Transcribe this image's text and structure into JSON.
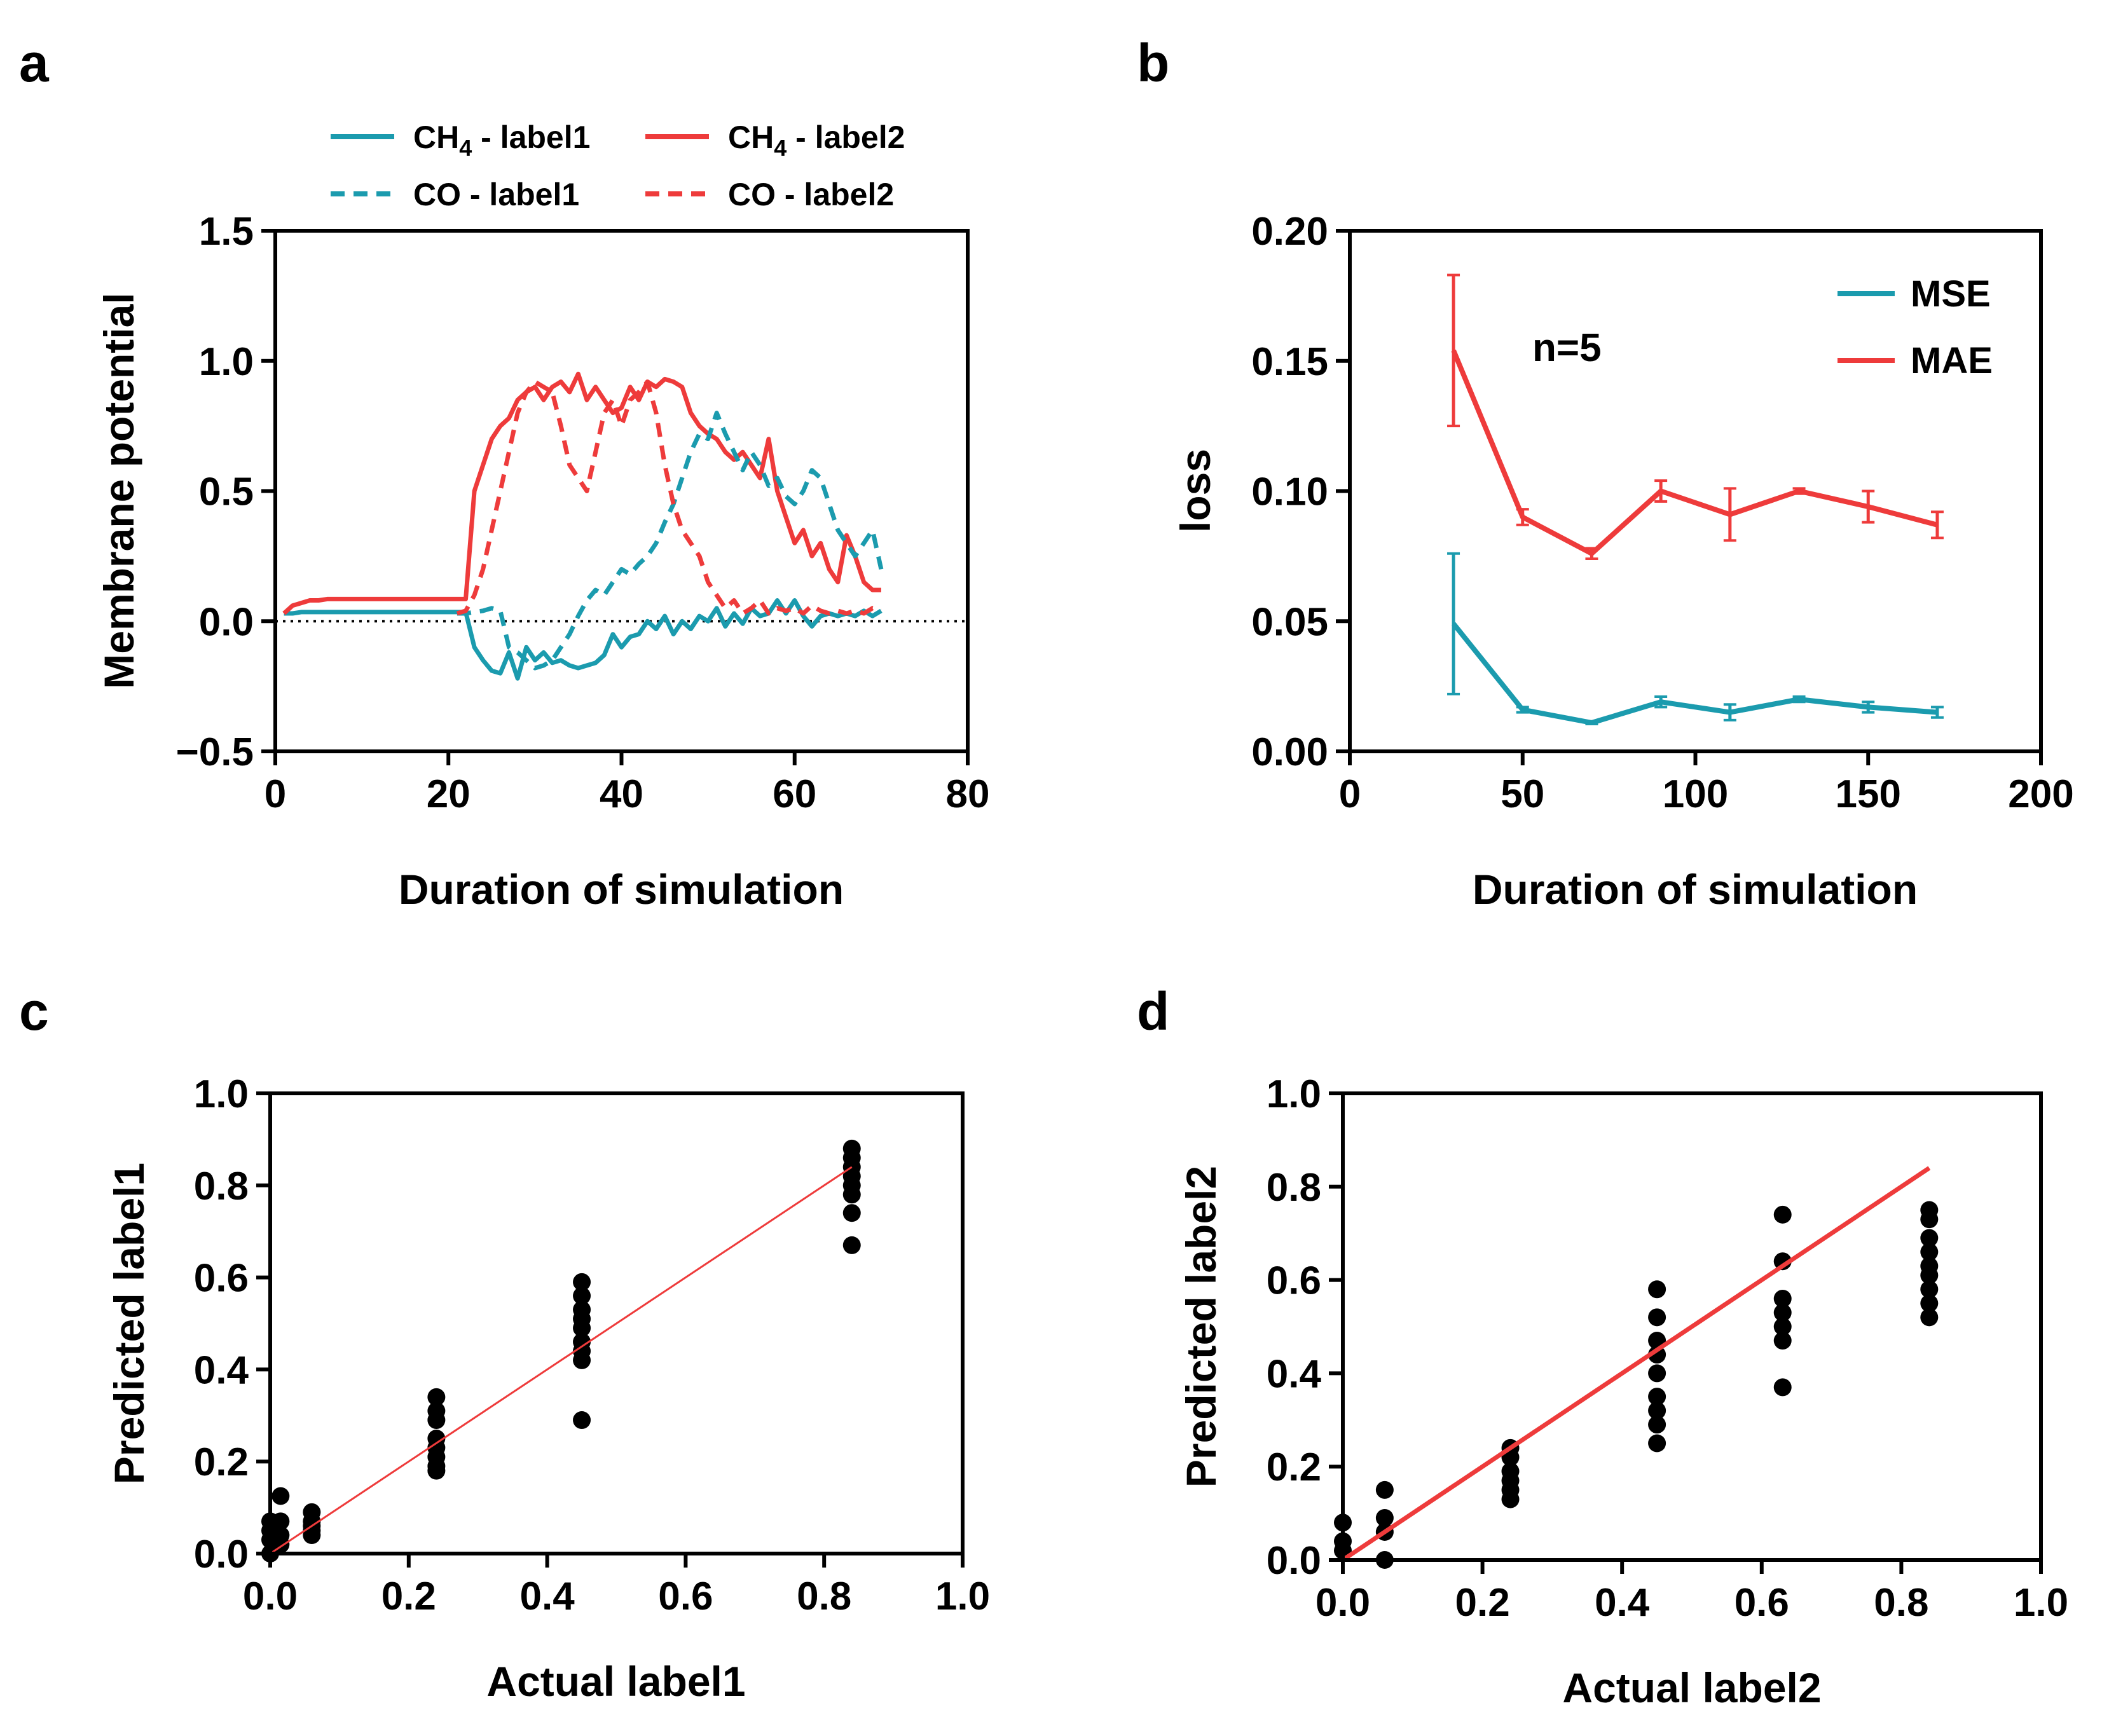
{
  "colors": {
    "teal": "#1B9BAE",
    "red": "#EE3B3B",
    "black": "#000000"
  },
  "chart_data": [
    {
      "panel": "a",
      "type": "line",
      "xlabel": "Duration of simulation",
      "ylabel": "Membrane potential",
      "xlim": [
        0,
        80
      ],
      "ylim": [
        -0.5,
        1.5
      ],
      "xticks": [
        "0",
        "20",
        "40",
        "60",
        "80"
      ],
      "yticks": [
        "−0.5",
        "0.0",
        "0.5",
        "1.0",
        "1.5"
      ],
      "reference_line": 0,
      "legend": [
        {
          "name": "CH",
          "sub": "4",
          "suffix": " - label1",
          "color": "#1B9BAE",
          "dash": false
        },
        {
          "name": "CH",
          "sub": "4",
          "suffix": " - label2",
          "color": "#EE3B3B",
          "dash": false
        },
        {
          "name": "CO - label1",
          "sub": "",
          "suffix": "",
          "color": "#1B9BAE",
          "dash": true
        },
        {
          "name": "CO - label2",
          "sub": "",
          "suffix": "",
          "color": "#EE3B3B",
          "dash": true
        }
      ],
      "series": [
        {
          "name": "CH4 - label1",
          "color": "#1B9BAE",
          "dash": false,
          "x": [
            1,
            2,
            3,
            4,
            5,
            10,
            15,
            20,
            22,
            23,
            24,
            25,
            26,
            27,
            28,
            29,
            30,
            31,
            32,
            33,
            34,
            35,
            36,
            37,
            38,
            39,
            40,
            41,
            42,
            43,
            44,
            45,
            46,
            47,
            48,
            49,
            50,
            51,
            52,
            53,
            54,
            55,
            56,
            57,
            58,
            59,
            60,
            61,
            62,
            63,
            64,
            65,
            66,
            67,
            68,
            69,
            70
          ],
          "y": [
            0.03,
            0.03,
            0.035,
            0.035,
            0.035,
            0.035,
            0.035,
            0.035,
            0.035,
            -0.1,
            -0.15,
            -0.19,
            -0.2,
            -0.12,
            -0.22,
            -0.1,
            -0.15,
            -0.12,
            -0.16,
            -0.15,
            -0.17,
            -0.18,
            -0.17,
            -0.16,
            -0.13,
            -0.05,
            -0.1,
            -0.06,
            -0.05,
            0,
            -0.03,
            0.02,
            -0.05,
            0,
            -0.03,
            0.02,
            0,
            0.05,
            -0.02,
            0.03,
            -0.01,
            0.05,
            0.02,
            0.03,
            0.08,
            0.03,
            0.08,
            0.02,
            -0.02,
            0.02,
            0.03,
            0.02,
            0.03,
            0.02,
            0.04,
            0.02,
            0.04
          ]
        },
        {
          "name": "CH4 - label2",
          "color": "#EE3B3B",
          "dash": false,
          "x": [
            1,
            2,
            3,
            4,
            5,
            6,
            10,
            15,
            20,
            22,
            23,
            24,
            25,
            26,
            27,
            28,
            29,
            30,
            31,
            32,
            33,
            34,
            35,
            36,
            37,
            38,
            39,
            40,
            41,
            42,
            43,
            44,
            45,
            46,
            47,
            48,
            49,
            50,
            51,
            52,
            53,
            54,
            55,
            56,
            57,
            58,
            59,
            60,
            61,
            62,
            63,
            64,
            65,
            66,
            67,
            68,
            69,
            70
          ],
          "y": [
            0.03,
            0.06,
            0.07,
            0.08,
            0.08,
            0.085,
            0.085,
            0.085,
            0.085,
            0.085,
            0.5,
            0.6,
            0.7,
            0.75,
            0.78,
            0.85,
            0.88,
            0.9,
            0.85,
            0.9,
            0.92,
            0.88,
            0.95,
            0.85,
            0.9,
            0.85,
            0.8,
            0.82,
            0.9,
            0.85,
            0.92,
            0.9,
            0.93,
            0.92,
            0.9,
            0.8,
            0.75,
            0.72,
            0.7,
            0.65,
            0.62,
            0.65,
            0.6,
            0.55,
            0.7,
            0.5,
            0.4,
            0.3,
            0.35,
            0.25,
            0.3,
            0.2,
            0.15,
            0.33,
            0.25,
            0.15,
            0.12,
            0.12
          ]
        },
        {
          "name": "CO - label1",
          "color": "#1B9BAE",
          "dash": true,
          "x": [
            21,
            22,
            23,
            24,
            25,
            26,
            27,
            28,
            29,
            30,
            31,
            32,
            33,
            34,
            35,
            36,
            37,
            38,
            39,
            40,
            41,
            42,
            43,
            44,
            45,
            46,
            47,
            48,
            49,
            50,
            51,
            52,
            53,
            54,
            55,
            56,
            57,
            58,
            59,
            60,
            61,
            62,
            63,
            64,
            65,
            66,
            67,
            68,
            69,
            70
          ],
          "y": [
            0.03,
            0.03,
            0.035,
            0.04,
            0.05,
            0.04,
            -0.1,
            -0.12,
            -0.15,
            -0.18,
            -0.17,
            -0.15,
            -0.1,
            -0.05,
            0.02,
            0.08,
            0.12,
            0.1,
            0.15,
            0.2,
            0.18,
            0.22,
            0.25,
            0.3,
            0.38,
            0.45,
            0.55,
            0.65,
            0.72,
            0.7,
            0.8,
            0.72,
            0.65,
            0.58,
            0.65,
            0.6,
            0.52,
            0.55,
            0.48,
            0.45,
            0.5,
            0.58,
            0.55,
            0.45,
            0.35,
            0.3,
            0.25,
            0.3,
            0.35,
            0.2
          ]
        },
        {
          "name": "CO - label2",
          "color": "#EE3B3B",
          "dash": true,
          "x": [
            21,
            22,
            23,
            24,
            25,
            26,
            27,
            28,
            29,
            30,
            31,
            32,
            33,
            34,
            35,
            36,
            37,
            38,
            39,
            40,
            41,
            42,
            43,
            44,
            45,
            46,
            47,
            48,
            49,
            50,
            51,
            52,
            53,
            54,
            55,
            56,
            57,
            58,
            59,
            60,
            61,
            62,
            63,
            64,
            65,
            66,
            67,
            68,
            69,
            70
          ],
          "y": [
            0.03,
            0.04,
            0.1,
            0.2,
            0.35,
            0.5,
            0.65,
            0.8,
            0.88,
            0.92,
            0.9,
            0.88,
            0.75,
            0.6,
            0.55,
            0.5,
            0.65,
            0.8,
            0.85,
            0.75,
            0.85,
            0.88,
            0.92,
            0.8,
            0.6,
            0.45,
            0.35,
            0.3,
            0.25,
            0.15,
            0.1,
            0.05,
            0.08,
            0.03,
            0.05,
            0.08,
            0.03,
            0.05,
            0.04,
            0.05,
            0.03,
            0.06,
            0.04,
            0.03,
            0.04,
            0.03,
            0.04,
            0.03,
            0.05,
            0.04
          ]
        }
      ]
    },
    {
      "panel": "b",
      "type": "line",
      "xlabel": "Duration of simulation",
      "ylabel": "loss",
      "xlim": [
        0,
        200
      ],
      "ylim": [
        0,
        0.2
      ],
      "xticks": [
        "0",
        "50",
        "100",
        "150",
        "200"
      ],
      "yticks": [
        "0.00",
        "0.05",
        "0.10",
        "0.15",
        "0.20"
      ],
      "annotation": "n=5",
      "legend": [
        {
          "name": "MSE",
          "color": "#1B9BAE"
        },
        {
          "name": "MAE",
          "color": "#EE3B3B"
        }
      ],
      "series": [
        {
          "name": "MSE",
          "color": "#1B9BAE",
          "x": [
            30,
            50,
            70,
            90,
            110,
            130,
            150,
            170
          ],
          "y": [
            0.049,
            0.016,
            0.011,
            0.019,
            0.015,
            0.02,
            0.017,
            0.015
          ],
          "err": [
            0.027,
            0.001,
            0.0005,
            0.002,
            0.003,
            0.001,
            0.002,
            0.002
          ]
        },
        {
          "name": "MAE",
          "color": "#EE3B3B",
          "x": [
            30,
            50,
            70,
            90,
            110,
            130,
            150,
            170
          ],
          "y": [
            0.154,
            0.09,
            0.076,
            0.1,
            0.091,
            0.1,
            0.094,
            0.087
          ],
          "err": [
            0.029,
            0.003,
            0.002,
            0.004,
            0.01,
            0.001,
            0.006,
            0.005
          ]
        }
      ]
    },
    {
      "panel": "c",
      "type": "scatter",
      "xlabel": "Actual label1",
      "ylabel": "Predicted label1",
      "xlim": [
        0,
        1
      ],
      "ylim": [
        0,
        1
      ],
      "xticks": [
        "0.0",
        "0.2",
        "0.4",
        "0.6",
        "0.8",
        "1.0"
      ],
      "yticks": [
        "0.0",
        "0.2",
        "0.4",
        "0.6",
        "0.8",
        "1.0"
      ],
      "fit_line": {
        "x": [
          0,
          0.84
        ],
        "y": [
          0,
          0.84
        ],
        "color": "#EE3B3B",
        "width": 3
      },
      "points": [
        [
          0,
          0.07
        ],
        [
          0,
          0.05
        ],
        [
          0,
          0.03
        ],
        [
          0,
          0.0
        ],
        [
          0.01,
          0.06
        ],
        [
          0.01,
          0.04
        ],
        [
          0.015,
          0.125
        ],
        [
          0.015,
          0.07
        ],
        [
          0.015,
          0.04
        ],
        [
          0.015,
          0.02
        ],
        [
          0.06,
          0.09
        ],
        [
          0.06,
          0.07
        ],
        [
          0.06,
          0.06
        ],
        [
          0.06,
          0.05
        ],
        [
          0.06,
          0.04
        ],
        [
          0.24,
          0.34
        ],
        [
          0.24,
          0.31
        ],
        [
          0.24,
          0.29
        ],
        [
          0.24,
          0.25
        ],
        [
          0.24,
          0.23
        ],
        [
          0.24,
          0.21
        ],
        [
          0.24,
          0.19
        ],
        [
          0.24,
          0.18
        ],
        [
          0.45,
          0.59
        ],
        [
          0.45,
          0.56
        ],
        [
          0.45,
          0.53
        ],
        [
          0.45,
          0.51
        ],
        [
          0.45,
          0.49
        ],
        [
          0.45,
          0.46
        ],
        [
          0.45,
          0.44
        ],
        [
          0.45,
          0.42
        ],
        [
          0.45,
          0.29
        ],
        [
          0.84,
          0.88
        ],
        [
          0.84,
          0.86
        ],
        [
          0.84,
          0.84
        ],
        [
          0.84,
          0.82
        ],
        [
          0.84,
          0.8
        ],
        [
          0.84,
          0.78
        ],
        [
          0.84,
          0.74
        ],
        [
          0.84,
          0.67
        ]
      ]
    },
    {
      "panel": "d",
      "type": "scatter",
      "xlabel": "Actual label2",
      "ylabel": "Predicted label2",
      "xlim": [
        0,
        1
      ],
      "ylim": [
        0,
        1
      ],
      "xticks": [
        "0.0",
        "0.2",
        "0.4",
        "0.6",
        "0.8",
        "1.0"
      ],
      "yticks": [
        "0.0",
        "0.2",
        "0.4",
        "0.6",
        "0.8",
        "1.0"
      ],
      "fit_line": {
        "x": [
          0,
          0.84
        ],
        "y": [
          0,
          0.84
        ],
        "color": "#EE3B3B",
        "width": 7
      },
      "points": [
        [
          0,
          0.08
        ],
        [
          0,
          0.04
        ],
        [
          0,
          0.02
        ],
        [
          0.06,
          0.15
        ],
        [
          0.06,
          0.09
        ],
        [
          0.06,
          0.06
        ],
        [
          0.06,
          0.0
        ],
        [
          0.24,
          0.24
        ],
        [
          0.24,
          0.22
        ],
        [
          0.24,
          0.19
        ],
        [
          0.24,
          0.17
        ],
        [
          0.24,
          0.15
        ],
        [
          0.24,
          0.13
        ],
        [
          0.45,
          0.58
        ],
        [
          0.45,
          0.52
        ],
        [
          0.45,
          0.47
        ],
        [
          0.45,
          0.44
        ],
        [
          0.45,
          0.4
        ],
        [
          0.45,
          0.35
        ],
        [
          0.45,
          0.32
        ],
        [
          0.45,
          0.29
        ],
        [
          0.45,
          0.25
        ],
        [
          0.63,
          0.74
        ],
        [
          0.63,
          0.64
        ],
        [
          0.63,
          0.56
        ],
        [
          0.63,
          0.53
        ],
        [
          0.63,
          0.5
        ],
        [
          0.63,
          0.47
        ],
        [
          0.63,
          0.37
        ],
        [
          0.84,
          0.75
        ],
        [
          0.84,
          0.73
        ],
        [
          0.84,
          0.69
        ],
        [
          0.84,
          0.66
        ],
        [
          0.84,
          0.63
        ],
        [
          0.84,
          0.61
        ],
        [
          0.84,
          0.58
        ],
        [
          0.84,
          0.55
        ],
        [
          0.84,
          0.52
        ]
      ]
    }
  ]
}
